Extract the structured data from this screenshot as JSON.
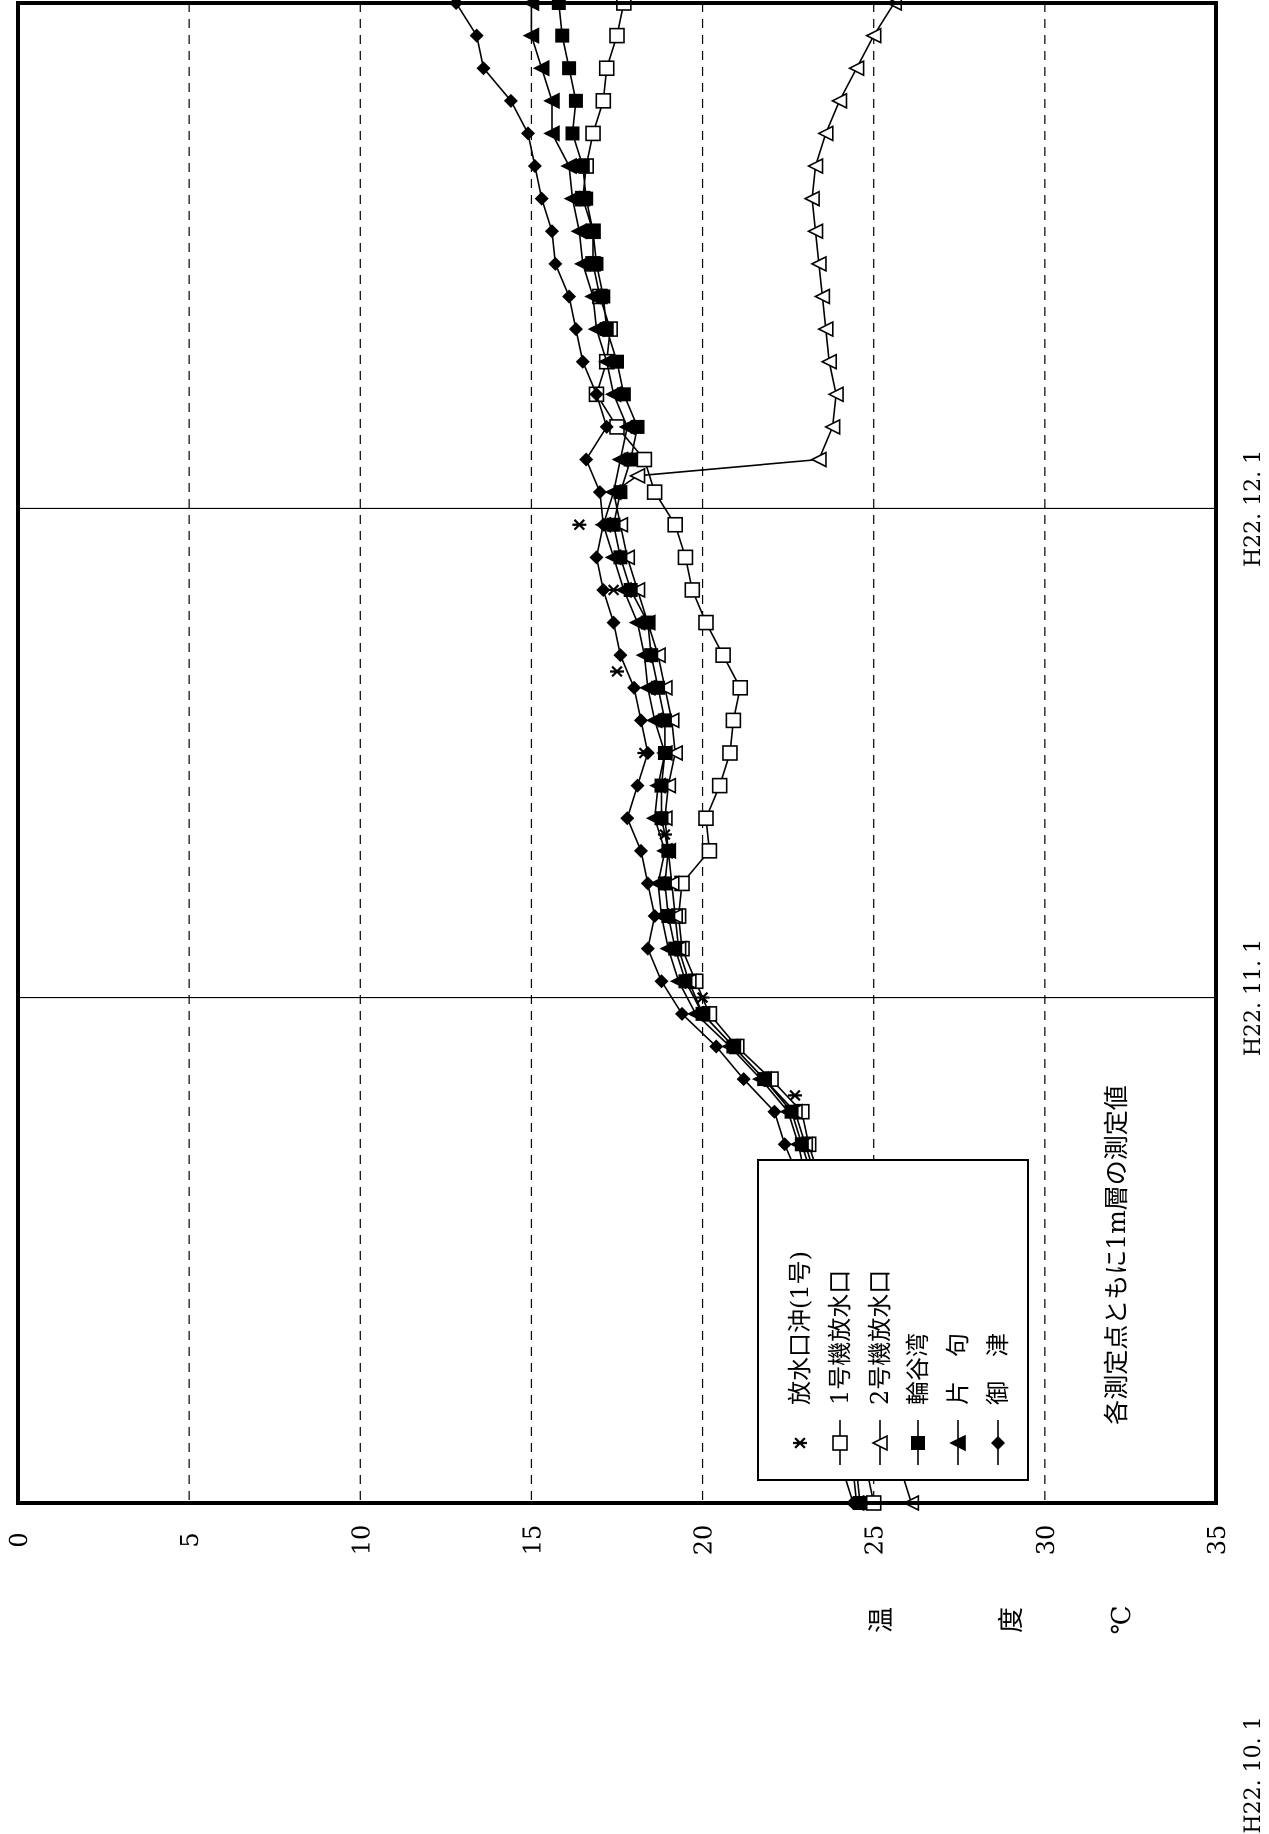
{
  "chart_data": {
    "type": "line",
    "orientation": "rotated-90-counterclockwise",
    "ylabel_chars": [
      "温",
      "度",
      "℃"
    ],
    "ylim": [
      0,
      35
    ],
    "yticks": [
      0,
      5,
      10,
      15,
      20,
      25,
      30,
      35
    ],
    "xlim": [
      0,
      92
    ],
    "xticks": [
      {
        "x": 0,
        "label": "H22. 10. 1"
      },
      {
        "x": 31,
        "label": "H22. 11. 1"
      },
      {
        "x": 61,
        "label": "H22. 12. 1"
      }
    ],
    "grid": "dashed-horizontal",
    "legend_position": "bottom-left",
    "annotation": "各測定点ともに1m層の測定値",
    "series": [
      {
        "name": "放水口沖(1号)",
        "marker": "asterisk",
        "line": false,
        "x": [
          2,
          10,
          25,
          31,
          36,
          41,
          46,
          51,
          56,
          60
        ],
        "y": [
          24.8,
          23.8,
          22.7,
          20.0,
          19.2,
          18.9,
          18.3,
          17.5,
          17.4,
          16.4
        ]
      },
      {
        "name": "1号機放水口",
        "marker": "open-square",
        "line": true,
        "x": [
          0,
          2,
          4,
          6,
          8,
          10,
          12,
          14,
          16,
          18,
          20,
          22,
          24,
          26,
          28,
          30,
          32,
          34,
          36,
          38,
          40,
          42,
          44,
          46,
          48,
          50,
          52,
          54,
          56,
          58,
          60,
          62,
          64,
          66,
          68,
          70,
          72,
          74,
          76,
          78,
          80,
          82,
          84,
          86,
          88,
          90,
          92
        ],
        "y": [
          25.0,
          24.8,
          24.6,
          24.4,
          24.3,
          24.2,
          24.1,
          24.0,
          23.8,
          23.6,
          23.4,
          23.1,
          22.9,
          22.0,
          21.0,
          20.2,
          19.8,
          19.4,
          19.3,
          19.4,
          20.2,
          20.1,
          20.5,
          20.8,
          20.9,
          21.1,
          20.6,
          20.1,
          19.7,
          19.5,
          19.2,
          18.6,
          18.3,
          17.5,
          16.9,
          17.2,
          17.3,
          17.0,
          16.8,
          16.8,
          16.5,
          16.6,
          16.8,
          17.1,
          17.2,
          17.5,
          17.7
        ]
      },
      {
        "name": "2号機放水口",
        "marker": "open-triangle",
        "line": true,
        "x": [
          0,
          2,
          4,
          6,
          8,
          10,
          12,
          14,
          16,
          18,
          20,
          22,
          24,
          26,
          28,
          30,
          32,
          34,
          36,
          38,
          40,
          42,
          44,
          46,
          48,
          50,
          52,
          54,
          56,
          58,
          60,
          62,
          63,
          64,
          66,
          68,
          70,
          72,
          74,
          76,
          78,
          80,
          82,
          84,
          86,
          88,
          90,
          92
        ],
        "y": [
          26.1,
          25.8,
          25.2,
          24.6,
          24.4,
          24.2,
          24.1,
          23.9,
          23.7,
          23.5,
          23.3,
          23.0,
          22.7,
          21.8,
          20.9,
          20.0,
          19.6,
          19.3,
          19.2,
          19.1,
          19.0,
          18.9,
          19.0,
          19.2,
          19.1,
          18.9,
          18.7,
          18.4,
          18.1,
          17.8,
          17.6,
          17.4,
          18.1,
          23.4,
          23.8,
          23.9,
          23.7,
          23.6,
          23.5,
          23.4,
          23.3,
          23.2,
          23.3,
          23.6,
          24.0,
          24.5,
          25.0,
          25.6
        ]
      },
      {
        "name": "輪谷湾",
        "marker": "filled-square",
        "line": true,
        "x": [
          0,
          2,
          4,
          6,
          8,
          10,
          12,
          14,
          16,
          18,
          20,
          22,
          24,
          26,
          28,
          30,
          32,
          34,
          36,
          38,
          40,
          42,
          44,
          46,
          48,
          50,
          52,
          54,
          56,
          58,
          60,
          62,
          64,
          66,
          68,
          70,
          72,
          74,
          76,
          78,
          80,
          82,
          84,
          86,
          88,
          90,
          92
        ],
        "y": [
          24.6,
          24.5,
          24.3,
          24.2,
          24.1,
          24.0,
          23.9,
          23.8,
          23.6,
          23.4,
          23.2,
          22.9,
          22.6,
          21.8,
          20.9,
          20.0,
          19.5,
          19.2,
          19.0,
          18.9,
          19.0,
          18.8,
          18.8,
          18.9,
          18.9,
          18.7,
          18.5,
          18.4,
          17.9,
          17.6,
          17.4,
          17.6,
          17.9,
          18.1,
          17.7,
          17.5,
          17.2,
          17.1,
          16.9,
          16.8,
          16.6,
          16.5,
          16.2,
          16.3,
          16.1,
          15.9,
          15.8
        ]
      },
      {
        "name": "片　句",
        "marker": "filled-triangle",
        "line": true,
        "x": [
          0,
          2,
          4,
          6,
          8,
          10,
          12,
          14,
          16,
          18,
          20,
          22,
          24,
          26,
          28,
          30,
          32,
          34,
          36,
          38,
          40,
          42,
          44,
          46,
          48,
          50,
          52,
          54,
          56,
          58,
          60,
          62,
          64,
          66,
          68,
          70,
          72,
          74,
          76,
          78,
          80,
          82,
          84,
          86,
          88,
          90,
          92
        ],
        "y": [
          24.5,
          24.4,
          24.2,
          24.1,
          23.9,
          23.8,
          23.7,
          23.6,
          23.4,
          23.2,
          23.0,
          22.8,
          22.5,
          21.7,
          20.8,
          19.8,
          19.3,
          19.0,
          18.8,
          18.7,
          18.9,
          18.6,
          18.7,
          18.9,
          18.6,
          18.4,
          18.3,
          18.1,
          17.7,
          17.4,
          17.1,
          17.4,
          17.6,
          17.8,
          17.4,
          17.2,
          16.9,
          16.8,
          16.5,
          16.4,
          16.2,
          16.1,
          15.6,
          15.6,
          15.3,
          15.0,
          15.0
        ]
      },
      {
        "name": "御　津",
        "marker": "filled-diamond",
        "line": true,
        "x": [
          0,
          2,
          4,
          6,
          8,
          10,
          12,
          14,
          16,
          18,
          20,
          22,
          24,
          26,
          28,
          30,
          32,
          34,
          36,
          38,
          40,
          42,
          44,
          46,
          48,
          50,
          52,
          54,
          56,
          58,
          60,
          62,
          64,
          66,
          68,
          70,
          72,
          74,
          76,
          78,
          80,
          82,
          84,
          86,
          88,
          90,
          92
        ],
        "y": [
          24.4,
          24.1,
          23.9,
          23.8,
          23.7,
          23.6,
          23.5,
          23.4,
          23.2,
          22.9,
          22.8,
          22.4,
          22.1,
          21.2,
          20.4,
          19.4,
          18.8,
          18.4,
          18.6,
          18.4,
          18.2,
          17.8,
          18.1,
          18.4,
          18.2,
          18.0,
          17.6,
          17.4,
          17.1,
          16.9,
          17.1,
          17.0,
          16.6,
          17.2,
          16.9,
          16.5,
          16.3,
          16.1,
          15.7,
          15.6,
          15.3,
          15.1,
          14.9,
          14.4,
          13.6,
          13.4,
          12.8
        ]
      }
    ]
  }
}
